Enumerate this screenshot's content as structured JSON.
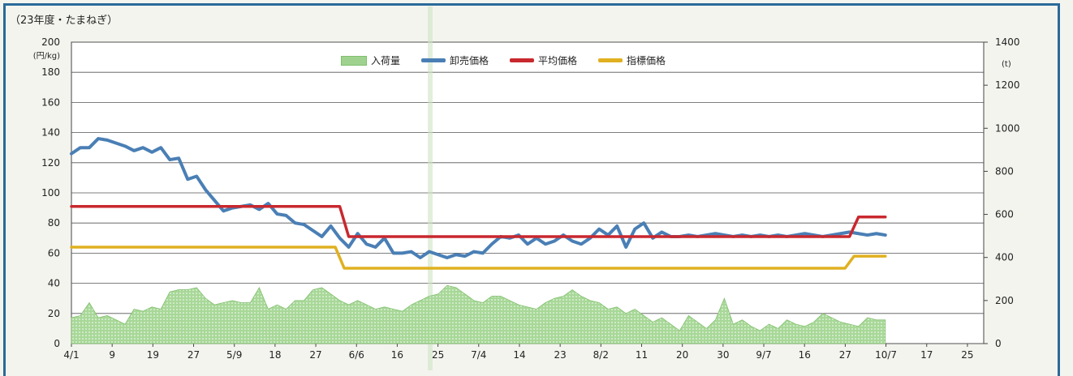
{
  "title": "（23年度・たまねぎ）",
  "chart_data": {
    "type": "line",
    "y_left": {
      "unit": "(円/kg)",
      "min": 0,
      "max": 200,
      "ticks": [
        0,
        20,
        40,
        60,
        80,
        100,
        120,
        140,
        160,
        180,
        200
      ]
    },
    "y_right": {
      "unit": "(t)",
      "min": 0,
      "max": 1400,
      "ticks": [
        0,
        200,
        400,
        600,
        800,
        1000,
        1200,
        1400
      ]
    },
    "x_tick_labels": [
      "4/1",
      "9",
      "19",
      "27",
      "5/9",
      "18",
      "27",
      "6/6",
      "16",
      "25",
      "7/4",
      "14",
      "23",
      "8/2",
      "11",
      "20",
      "30",
      "9/7",
      "16",
      "27",
      "10/7",
      "17",
      "25"
    ],
    "x_range": [
      0,
      204
    ],
    "legend": [
      "入荷量",
      "卸売価格",
      "平均価格",
      "指標価格"
    ],
    "colors": {
      "入荷量": "#a8d898",
      "卸売価格": "#4a7fb5",
      "平均価格": "#c8282e",
      "指標価格": "#e0b020"
    },
    "series": [
      {
        "name": "卸売価格",
        "axis": "left",
        "kind": "line",
        "x": [
          0,
          2,
          4,
          6,
          8,
          10,
          12,
          14,
          16,
          18,
          20,
          22,
          24,
          26,
          28,
          30,
          32,
          34,
          36,
          38,
          40,
          42,
          44,
          46,
          48,
          50,
          52,
          54,
          56,
          58,
          60,
          62,
          64,
          66,
          68,
          70,
          72,
          74,
          76,
          78,
          80,
          82,
          84,
          86,
          88,
          90,
          92,
          94,
          96,
          98,
          100,
          102,
          104,
          106,
          108,
          110,
          112,
          114,
          116,
          118,
          120,
          122,
          124,
          126,
          128,
          130,
          132,
          134,
          136,
          138,
          140,
          142,
          144,
          146,
          148,
          150,
          152,
          154,
          156,
          158,
          160,
          162,
          164,
          166,
          168,
          170,
          172,
          174,
          176,
          178,
          180,
          182
        ],
        "values": [
          126,
          130,
          130,
          136,
          135,
          133,
          131,
          128,
          130,
          127,
          130,
          122,
          123,
          109,
          111,
          102,
          95,
          88,
          90,
          91,
          92,
          89,
          93,
          86,
          85,
          80,
          79,
          75,
          71,
          78,
          70,
          64,
          73,
          66,
          64,
          70,
          60,
          60,
          61,
          57,
          61,
          59,
          57,
          59,
          58,
          61,
          60,
          66,
          71,
          70,
          72,
          66,
          70,
          66,
          68,
          72,
          68,
          66,
          70,
          76,
          72,
          78,
          64,
          76,
          80,
          70,
          74,
          71,
          71,
          72,
          71,
          72,
          73,
          72,
          71,
          72,
          71,
          72,
          71,
          72,
          71,
          72,
          73,
          72,
          71,
          72,
          73,
          74,
          73,
          72,
          73,
          72
        ]
      },
      {
        "name": "平均価格",
        "axis": "left",
        "kind": "step",
        "x": [
          0,
          60,
          62,
          174,
          176,
          182
        ],
        "values": [
          91,
          91,
          71,
          71,
          84,
          84
        ]
      },
      {
        "name": "指標価格",
        "axis": "left",
        "kind": "step",
        "x": [
          0,
          59,
          61,
          173,
          175,
          182
        ],
        "values": [
          64,
          64,
          50,
          50,
          58,
          58
        ]
      },
      {
        "name": "入荷量",
        "axis": "right",
        "kind": "area",
        "x": [
          0,
          2,
          4,
          6,
          8,
          10,
          12,
          14,
          16,
          18,
          20,
          22,
          24,
          26,
          28,
          30,
          32,
          34,
          36,
          38,
          40,
          42,
          44,
          46,
          48,
          50,
          52,
          54,
          56,
          58,
          60,
          62,
          64,
          66,
          68,
          70,
          72,
          74,
          76,
          78,
          80,
          82,
          84,
          86,
          88,
          90,
          92,
          94,
          96,
          98,
          100,
          102,
          104,
          106,
          108,
          110,
          112,
          114,
          116,
          118,
          120,
          122,
          124,
          126,
          128,
          130,
          132,
          134,
          136,
          138,
          140,
          142,
          144,
          146,
          148,
          150,
          152,
          154,
          156,
          158,
          160,
          162,
          164,
          166,
          168,
          170,
          172,
          174,
          176,
          178,
          180,
          182
        ],
        "values": [
          120,
          130,
          190,
          120,
          130,
          110,
          90,
          160,
          150,
          170,
          160,
          240,
          250,
          250,
          260,
          210,
          180,
          190,
          200,
          190,
          190,
          260,
          160,
          180,
          160,
          200,
          200,
          250,
          260,
          230,
          200,
          180,
          200,
          180,
          160,
          170,
          160,
          150,
          180,
          200,
          220,
          230,
          270,
          260,
          230,
          200,
          190,
          220,
          220,
          200,
          180,
          170,
          160,
          190,
          210,
          220,
          250,
          220,
          200,
          190,
          160,
          170,
          140,
          160,
          130,
          100,
          120,
          90,
          60,
          130,
          100,
          70,
          110,
          210,
          90,
          110,
          80,
          60,
          90,
          70,
          110,
          90,
          80,
          100,
          140,
          120,
          100,
          90,
          80,
          120,
          110,
          110
        ]
      }
    ]
  }
}
